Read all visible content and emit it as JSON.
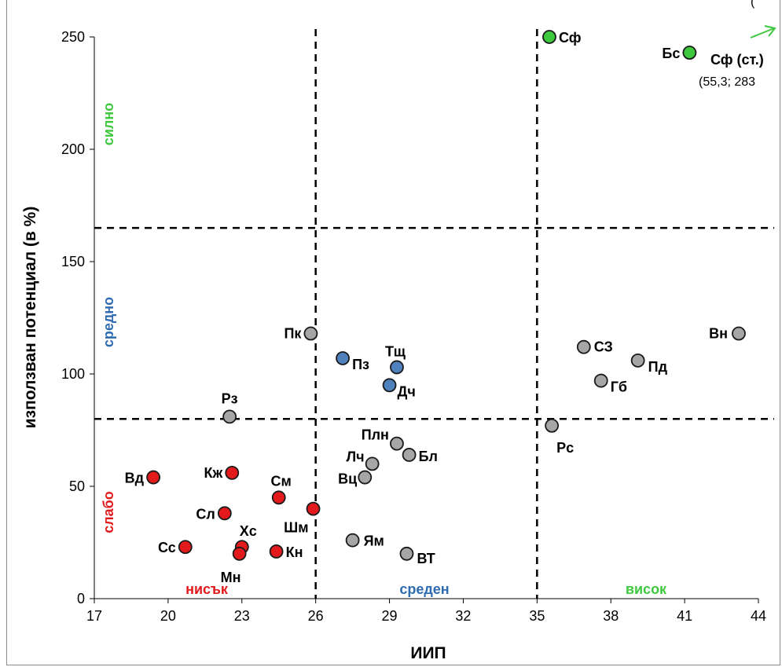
{
  "chart_data": {
    "type": "scatter",
    "xlabel": "ИИП",
    "ylabel": "използван потенциал (в %)",
    "xlim": [
      17,
      44
    ],
    "ylim": [
      0,
      250
    ],
    "x_ticks": [
      "17",
      "20",
      "23",
      "26",
      "29",
      "32",
      "35",
      "38",
      "41",
      "44"
    ],
    "y_ticks": [
      "0",
      "50",
      "100",
      "150",
      "200",
      "250"
    ],
    "x_tick_values": [
      17,
      20,
      23,
      26,
      29,
      32,
      35,
      38,
      41,
      44
    ],
    "y_tick_values": [
      0,
      50,
      100,
      150,
      200,
      250
    ],
    "thresholds": {
      "x": [
        26,
        35
      ],
      "y": [
        80,
        165
      ]
    },
    "colors": {
      "weak": "#e31a1c",
      "medium": "#4f81bd",
      "strong": "#3ec83e",
      "other": "#a6a6a6",
      "weak_text": "#e31a1c",
      "medium_text": "#2e6bb0",
      "strong_text": "#3ec83e"
    },
    "zone_labels": {
      "y_weak": "слабо",
      "y_medium": "средно",
      "y_strong": "силно",
      "x_low": "нисък",
      "x_medium": "среден",
      "x_high": "висок"
    },
    "annotation": {
      "label": "Сф (ст.)",
      "coords": "(55,3; 283",
      "arrow": "arrow-up-right-icon"
    },
    "points": [
      {
        "label": "Сф",
        "x": 35.5,
        "y": 250,
        "group": "strong"
      },
      {
        "label": "Бс",
        "x": 41.2,
        "y": 243,
        "group": "strong"
      },
      {
        "label": "Вн",
        "x": 43.2,
        "y": 118,
        "group": "other"
      },
      {
        "label": "СЗ",
        "x": 36.9,
        "y": 112,
        "group": "other"
      },
      {
        "label": "Пд",
        "x": 39.1,
        "y": 106,
        "group": "other"
      },
      {
        "label": "Гб",
        "x": 37.6,
        "y": 97,
        "group": "other"
      },
      {
        "label": "Рс",
        "x": 35.6,
        "y": 77,
        "group": "other"
      },
      {
        "label": "Пк",
        "x": 25.8,
        "y": 118,
        "group": "other"
      },
      {
        "label": "Пз",
        "x": 27.1,
        "y": 107,
        "group": "medium"
      },
      {
        "label": "Тщ",
        "x": 29.3,
        "y": 103,
        "group": "medium"
      },
      {
        "label": "Дч",
        "x": 29.0,
        "y": 95,
        "group": "medium"
      },
      {
        "label": "Рз",
        "x": 22.5,
        "y": 81,
        "group": "other"
      },
      {
        "label": "Плн",
        "x": 29.3,
        "y": 69,
        "group": "other"
      },
      {
        "label": "Бл",
        "x": 29.8,
        "y": 64,
        "group": "other"
      },
      {
        "label": "Лч",
        "x": 28.3,
        "y": 60,
        "group": "other"
      },
      {
        "label": "Вц",
        "x": 28.0,
        "y": 54,
        "group": "other"
      },
      {
        "label": "Вд",
        "x": 19.4,
        "y": 54,
        "group": "weak"
      },
      {
        "label": "Кж",
        "x": 22.6,
        "y": 56,
        "group": "weak"
      },
      {
        "label": "См",
        "x": 24.5,
        "y": 45,
        "group": "weak"
      },
      {
        "label": "Шм",
        "x": 25.9,
        "y": 40,
        "group": "weak"
      },
      {
        "label": "Сл",
        "x": 22.3,
        "y": 38,
        "group": "weak"
      },
      {
        "label": "Хс",
        "x": 23.0,
        "y": 23,
        "group": "weak"
      },
      {
        "label": "Сс",
        "x": 20.7,
        "y": 23,
        "group": "weak"
      },
      {
        "label": "Мн",
        "x": 22.9,
        "y": 20,
        "group": "weak"
      },
      {
        "label": "Кн",
        "x": 24.4,
        "y": 21,
        "group": "weak"
      },
      {
        "label": "Ям",
        "x": 27.5,
        "y": 26,
        "group": "other"
      },
      {
        "label": "ВТ",
        "x": 29.7,
        "y": 20,
        "group": "other"
      }
    ]
  }
}
